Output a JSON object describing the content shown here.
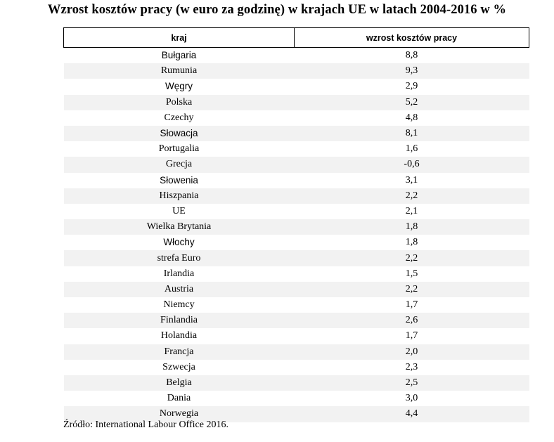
{
  "chart_data": {
    "type": "table",
    "title": "Wzrost kosztów pracy (w euro za godzinę) w krajach UE w latach 2004-2016 w %",
    "columns": [
      "kraj",
      "wzrost kosztów pracy"
    ],
    "rows": [
      {
        "kraj": "Bułgaria",
        "wzrost": "8,8"
      },
      {
        "kraj": "Rumunia",
        "wzrost": "9,3"
      },
      {
        "kraj": "Węgry",
        "wzrost": "2,9"
      },
      {
        "kraj": "Polska",
        "wzrost": "5,2"
      },
      {
        "kraj": "Czechy",
        "wzrost": "4,8"
      },
      {
        "kraj": "Słowacja",
        "wzrost": "8,1"
      },
      {
        "kraj": "Portugalia",
        "wzrost": "1,6"
      },
      {
        "kraj": "Grecja",
        "wzrost": "-0,6"
      },
      {
        "kraj": "Słowenia",
        "wzrost": "3,1"
      },
      {
        "kraj": "Hiszpania",
        "wzrost": "2,2"
      },
      {
        "kraj": "UE",
        "wzrost": "2,1"
      },
      {
        "kraj": "Wielka Brytania",
        "wzrost": "1,8"
      },
      {
        "kraj": "Włochy",
        "wzrost": "1,8"
      },
      {
        "kraj": "strefa Euro",
        "wzrost": "2,2"
      },
      {
        "kraj": "Irlandia",
        "wzrost": "1,5"
      },
      {
        "kraj": "Austria",
        "wzrost": "2,2"
      },
      {
        "kraj": "Niemcy",
        "wzrost": "1,7"
      },
      {
        "kraj": "Finlandia",
        "wzrost": "2,6"
      },
      {
        "kraj": "Holandia",
        "wzrost": "1,7"
      },
      {
        "kraj": "Francja",
        "wzrost": "2,0"
      },
      {
        "kraj": "Szwecja",
        "wzrost": "2,3"
      },
      {
        "kraj": "Belgia",
        "wzrost": "2,5"
      },
      {
        "kraj": "Dania",
        "wzrost": "3,0"
      },
      {
        "kraj": "Norwegia",
        "wzrost": "4,4"
      }
    ],
    "source": "Źródło: International Labour Office 2016."
  }
}
